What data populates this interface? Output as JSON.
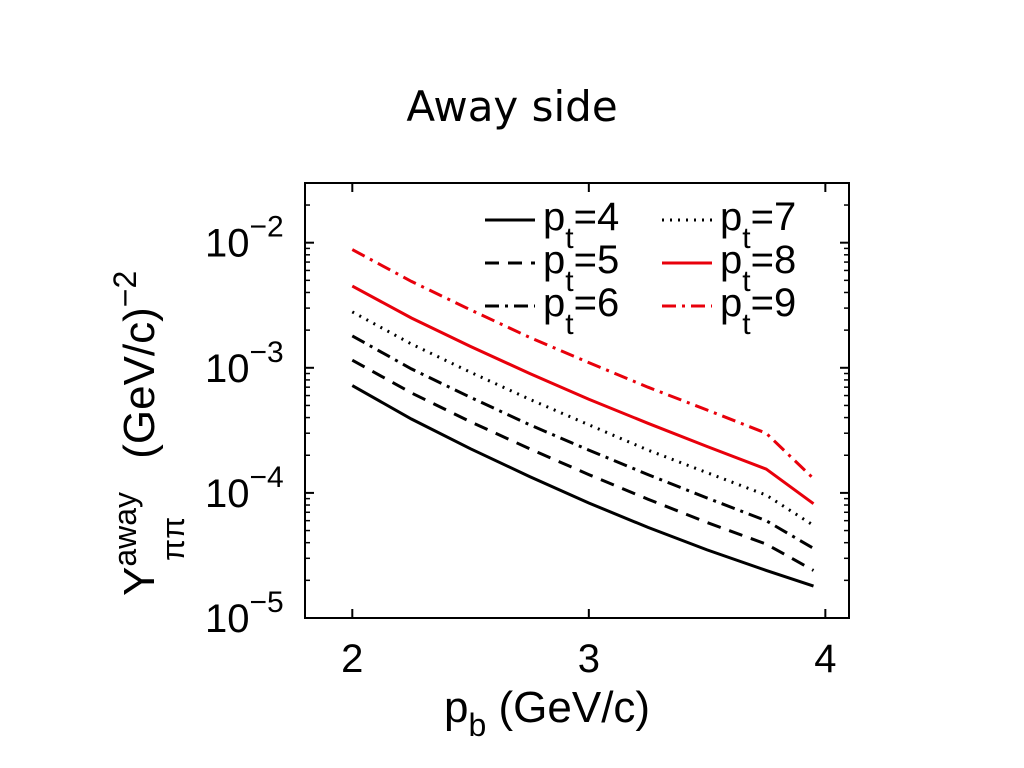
{
  "slide": {
    "title": "Away side"
  },
  "chart_data": {
    "type": "line",
    "xlabel": {
      "main": "p",
      "sub": "b",
      "unit": " (GeV/c)"
    },
    "ylabel": {
      "main": "Y",
      "sup": "away",
      "sub": "ππ",
      "unit": " (GeV/c)",
      "unit_sup": "−2"
    },
    "xlim": [
      1.8,
      4.1
    ],
    "ylim": [
      1e-05,
      0.03
    ],
    "yscale": "log",
    "x_ticks": [
      2,
      3,
      4
    ],
    "y_ticks": [
      {
        "value": 1e-05,
        "base": "10",
        "exp": "−5"
      },
      {
        "value": 0.0001,
        "base": "10",
        "exp": "−4"
      },
      {
        "value": 0.001,
        "base": "10",
        "exp": "−3"
      },
      {
        "value": 0.01,
        "base": "10",
        "exp": "−2"
      }
    ],
    "x": [
      2.0,
      2.25,
      2.5,
      2.75,
      3.0,
      3.25,
      3.5,
      3.75,
      3.95
    ],
    "series": [
      {
        "name": "4",
        "label_main": "p",
        "label_sub": "t",
        "label_eq": "=4",
        "color": "#000000",
        "dash": "solid",
        "values": [
          0.00072,
          0.00039,
          0.000225,
          0.000135,
          8.3e-05,
          5.3e-05,
          3.5e-05,
          2.4e-05,
          1.8e-05
        ]
      },
      {
        "name": "5",
        "label_main": "p",
        "label_sub": "t",
        "label_eq": "=5",
        "color": "#000000",
        "dash": "dashed",
        "values": [
          0.00115,
          0.00063,
          0.00037,
          0.000225,
          0.00014,
          8.9e-05,
          5.8e-05,
          3.9e-05,
          2.4e-05
        ]
      },
      {
        "name": "6",
        "label_main": "p",
        "label_sub": "t",
        "label_eq": "=6",
        "color": "#000000",
        "dash": "dashdot",
        "values": [
          0.0018,
          0.00098,
          0.00058,
          0.00035,
          0.00022,
          0.00014,
          9.1e-05,
          6e-05,
          3.6e-05
        ]
      },
      {
        "name": "7",
        "label_main": "p",
        "label_sub": "t",
        "label_eq": "=7",
        "color": "#000000",
        "dash": "dotted",
        "values": [
          0.0028,
          0.00155,
          0.00092,
          0.00056,
          0.00035,
          0.00022,
          0.000145,
          9.6e-05,
          5.5e-05
        ]
      },
      {
        "name": "8",
        "label_main": "p",
        "label_sub": "t",
        "label_eq": "=8",
        "color": "#e8000b",
        "dash": "solid",
        "values": [
          0.0045,
          0.0025,
          0.00148,
          0.0009,
          0.00056,
          0.00036,
          0.000235,
          0.000155,
          8.2e-05
        ]
      },
      {
        "name": "9",
        "label_main": "p",
        "label_sub": "t",
        "label_eq": "=9",
        "color": "#e8000b",
        "dash": "dashdot",
        "values": [
          0.0088,
          0.0049,
          0.0029,
          0.00175,
          0.0011,
          0.0007,
          0.00046,
          0.0003,
          0.00013
        ]
      }
    ],
    "legend": "top-right",
    "grid": false
  }
}
